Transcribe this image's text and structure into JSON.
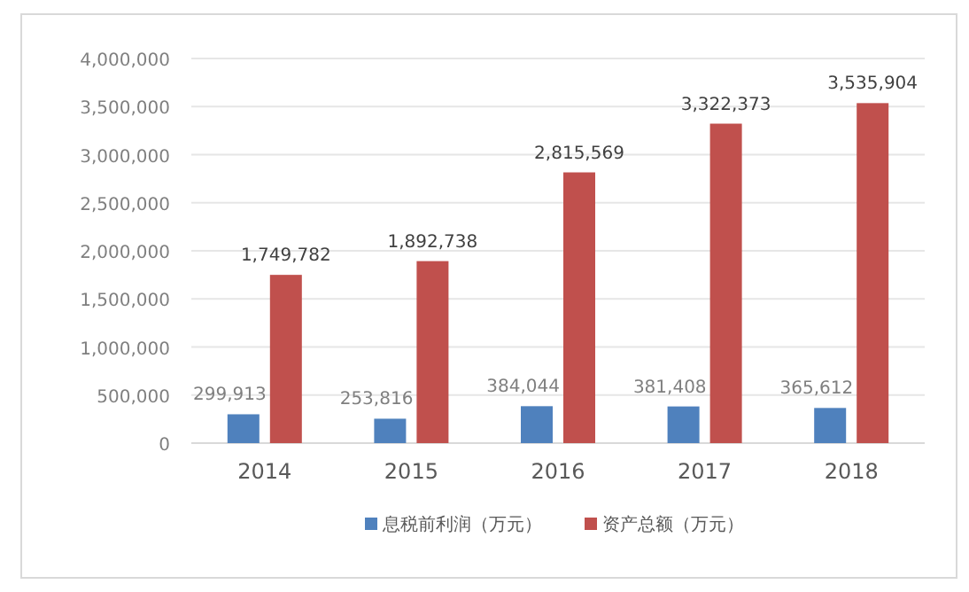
{
  "chart_data": {
    "type": "bar",
    "categories": [
      "2014",
      "2015",
      "2016",
      "2017",
      "2018"
    ],
    "series": [
      {
        "name": "息税前利润（万元）",
        "color": "#4f81bd",
        "values": [
          299913,
          253816,
          384044,
          381408,
          365612
        ],
        "value_labels": [
          "299,913",
          "253,816",
          "384,044",
          "381,408",
          "365,612"
        ]
      },
      {
        "name": "资产总额（万元）",
        "color": "#c0504d",
        "values": [
          1749782,
          1892738,
          2815569,
          3322373,
          3535904
        ],
        "value_labels": [
          "1,749,782",
          "1,892,738",
          "2,815,569",
          "3,322,373",
          "3,535,904"
        ]
      }
    ],
    "ylim": [
      0,
      4000000
    ],
    "yticks": [
      {
        "value": 0,
        "label": "0"
      },
      {
        "value": 500000,
        "label": "500,000"
      },
      {
        "value": 1000000,
        "label": "1,000,000"
      },
      {
        "value": 1500000,
        "label": "1,500,000"
      },
      {
        "value": 2000000,
        "label": "2,000,000"
      },
      {
        "value": 2500000,
        "label": "2,500,000"
      },
      {
        "value": 3000000,
        "label": "3,000,000"
      },
      {
        "value": 3500000,
        "label": "3,500,000"
      },
      {
        "value": 4000000,
        "label": "4,000,000"
      }
    ],
    "grid": "y",
    "legend": "bottom"
  }
}
